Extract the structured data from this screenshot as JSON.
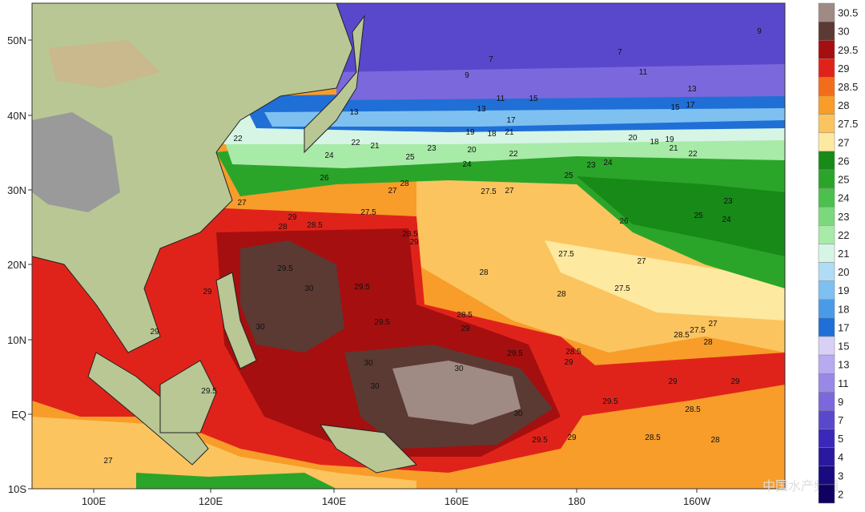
{
  "map": {
    "lon_labels": [
      "100E",
      "120E",
      "140E",
      "160E",
      "180",
      "160W"
    ],
    "lat_labels": [
      "50N",
      "40N",
      "30N",
      "20N",
      "10N",
      "EQ",
      "10S"
    ],
    "colorbar": {
      "labels": [
        30.5,
        30,
        29.5,
        29,
        28.5,
        28,
        27.5,
        27,
        26,
        25,
        24,
        23,
        22,
        21,
        20,
        19,
        18,
        17,
        15,
        13,
        11,
        9,
        7,
        5,
        4,
        3,
        2
      ],
      "colors": [
        "#a08a84",
        "#5b3a33",
        "#a50f0f",
        "#e0231a",
        "#f26d1b",
        "#f89c2a",
        "#fbc45e",
        "#fde9a0",
        "#178a17",
        "#2aa52a",
        "#4cc04c",
        "#7cd87c",
        "#a8eaa8",
        "#d6f5e4",
        "#b0dcf5",
        "#7ec0f0",
        "#4a9be6",
        "#1f6fd6",
        "#d8d0f5",
        "#b8aaf0",
        "#9a88e8",
        "#7b68dc",
        "#5a48cc",
        "#3a28b8",
        "#2a18a0",
        "#1a0a80",
        "#100060"
      ]
    },
    "contour_labels": [
      "9",
      "7",
      "7",
      "9",
      "11",
      "13",
      "11",
      "15",
      "13",
      "17",
      "15",
      "13",
      "17",
      "22",
      "22",
      "21",
      "19",
      "18",
      "21",
      "23",
      "20",
      "22",
      "20",
      "18",
      "19",
      "21",
      "22",
      "24",
      "25",
      "24",
      "26",
      "25",
      "23",
      "24",
      "27",
      "28",
      "27.5",
      "27",
      "26",
      "23",
      "25",
      "24",
      "27",
      "29",
      "28",
      "28.5",
      "27.5",
      "28.5",
      "29",
      "29.5",
      "30",
      "29.5",
      "27.5",
      "28",
      "27",
      "27.5",
      "28",
      "29",
      "30",
      "29.5",
      "28.5",
      "29",
      "28.5",
      "27.5",
      "27",
      "29",
      "29.5",
      "28.5",
      "29",
      "28",
      "30",
      "30",
      "30",
      "29.5",
      "29",
      "29.5",
      "30",
      "29.5",
      "29",
      "28.5",
      "28",
      "27",
      "28.5",
      "29"
    ],
    "watermark": "中国水产频道"
  }
}
